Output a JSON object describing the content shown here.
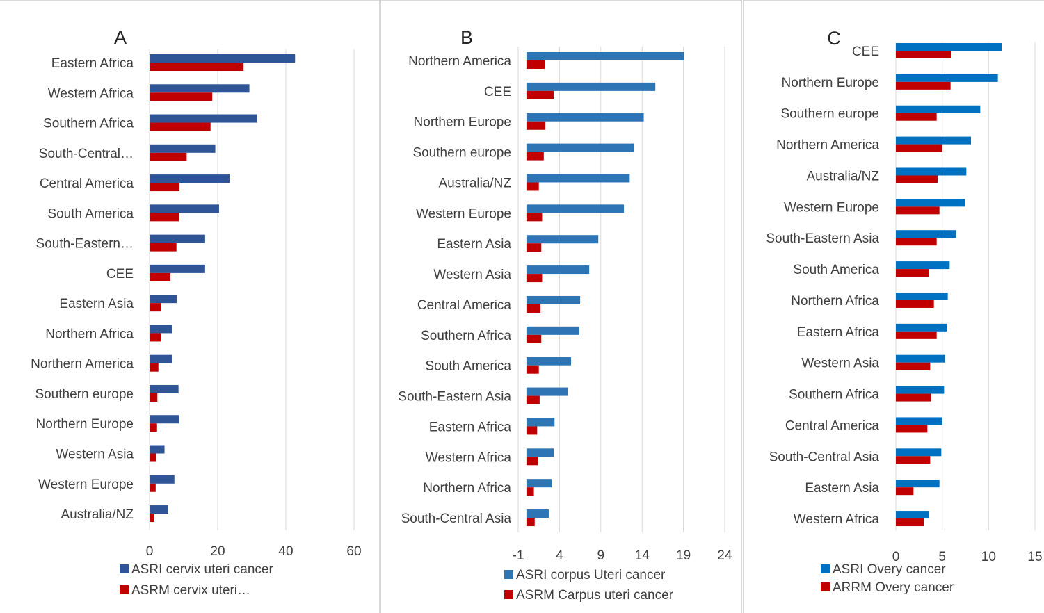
{
  "chart_data": [
    {
      "type": "bar",
      "orientation": "horizontal",
      "title": "A",
      "categories": [
        "Eastern Africa",
        "Western Africa",
        "Southern Africa",
        "South-Central…",
        "Central America",
        "South America",
        "South-Eastern…",
        "CEE",
        "Eastern Asia",
        "Northern Africa",
        "Northern America",
        "Southern europe",
        "Northern Europe",
        "Western Asia",
        "Western Europe",
        "Australia/NZ"
      ],
      "series": [
        {
          "name": "ASRI cervix uteri cancer",
          "color": "#2f5597",
          "values": [
            42.7,
            29.3,
            31.6,
            19.3,
            23.5,
            20.4,
            16.3,
            16.3,
            8.0,
            6.7,
            6.6,
            8.5,
            8.7,
            4.4,
            7.3,
            5.5
          ]
        },
        {
          "name": "ASRM cervix uteri…",
          "color": "#c00000",
          "values": [
            27.6,
            18.4,
            17.9,
            10.9,
            8.8,
            8.6,
            7.9,
            6.1,
            3.4,
            3.3,
            2.6,
            2.3,
            2.2,
            1.9,
            1.8,
            1.4
          ]
        }
      ],
      "xlim": [
        0,
        60
      ],
      "ticks": [
        "0",
        "20",
        "40",
        "60"
      ],
      "grid": true,
      "legend": "bottom"
    },
    {
      "type": "bar",
      "orientation": "horizontal",
      "title": "B",
      "categories": [
        "Northern America",
        "CEE",
        "Northern Europe",
        "Southern europe",
        "Australia/NZ",
        "Western Europe",
        "Eastern Asia",
        "Western Asia",
        "Central America",
        "Southern Africa",
        "South America",
        "South-Eastern Asia",
        "Eastern Africa",
        "Western Africa",
        "Northern Africa",
        "South-Central Asia"
      ],
      "series": [
        {
          "name": "ASRI corpus Uteri cancer",
          "color": "#2e75b6",
          "values": [
            19.1,
            15.6,
            14.2,
            13.0,
            12.5,
            11.8,
            8.7,
            7.6,
            6.5,
            6.4,
            5.4,
            5.0,
            3.4,
            3.3,
            3.1,
            2.7
          ]
        },
        {
          "name": "ASRM Carpus uteri cancer",
          "color": "#c00000",
          "values": [
            2.2,
            3.3,
            2.3,
            2.1,
            1.5,
            1.9,
            1.8,
            1.9,
            1.7,
            1.8,
            1.5,
            1.6,
            1.3,
            1.4,
            0.9,
            1.0
          ]
        }
      ],
      "xlim": [
        -1,
        24
      ],
      "ticks": [
        "-1",
        "4",
        "9",
        "14",
        "19",
        "24"
      ],
      "grid": true,
      "legend": "bottom"
    },
    {
      "type": "bar",
      "orientation": "horizontal",
      "title": "C",
      "categories": [
        "CEE",
        "Northern Europe",
        "Southern europe",
        "Northern America",
        "Australia/NZ",
        "Western Europe",
        "South-Eastern Asia",
        "South America",
        "Northern Africa",
        "Eastern Africa",
        "Western Asia",
        "Southern Africa",
        "Central America",
        "South-Central Asia",
        "Eastern Asia",
        "Western Africa"
      ],
      "series": [
        {
          "name": "ASRI Overy cancer",
          "color": "#0070c0",
          "values": [
            11.4,
            11.0,
            9.1,
            8.1,
            7.6,
            7.5,
            6.5,
            5.8,
            5.6,
            5.5,
            5.3,
            5.2,
            5.0,
            4.9,
            4.7,
            3.6
          ]
        },
        {
          "name": "ARRM Overy cancer",
          "color": "#c00000",
          "values": [
            6.0,
            5.9,
            4.4,
            5.0,
            4.5,
            4.7,
            4.4,
            3.6,
            4.1,
            4.4,
            3.7,
            3.8,
            3.4,
            3.7,
            1.9,
            3.0
          ]
        }
      ],
      "xlim": [
        0,
        15
      ],
      "ticks": [
        "0",
        "5",
        "10",
        "15"
      ],
      "grid": true,
      "legend": "bottom"
    }
  ]
}
